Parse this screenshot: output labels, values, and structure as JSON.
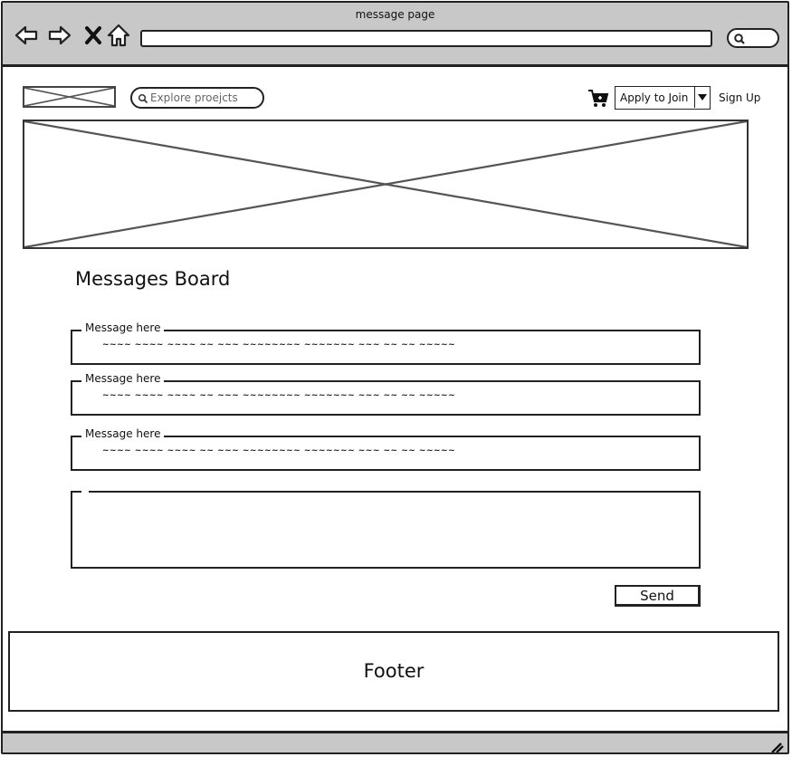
{
  "window": {
    "title": "message page"
  },
  "header": {
    "search_placeholder": "Explore proejcts",
    "apply_label": "Apply to Join",
    "signup_label": "Sign Up"
  },
  "board": {
    "title": "Messages Board",
    "messages": [
      {
        "legend": "Message here",
        "text": "~~~~ ~~~~ ~~~~ ~~ ~~~ ~~~~~~~~ ~~~~~~~ ~~~ ~~ ~~ ~~~~~"
      },
      {
        "legend": "Message here",
        "text": "~~~~ ~~~~ ~~~~ ~~ ~~~ ~~~~~~~~ ~~~~~~~ ~~~ ~~ ~~ ~~~~~"
      },
      {
        "legend": "Message here",
        "text": "~~~~ ~~~~ ~~~~ ~~ ~~~ ~~~~~~~~ ~~~~~~~ ~~~ ~~ ~~ ~~~~~"
      }
    ],
    "compose_value": "",
    "send_label": "Send"
  },
  "footer": {
    "label": "Footer"
  },
  "icons": [
    "back-icon",
    "forward-icon",
    "close-icon",
    "home-icon",
    "search-icon",
    "cart-icon",
    "chevron-down-icon",
    "resize-grip-icon"
  ]
}
